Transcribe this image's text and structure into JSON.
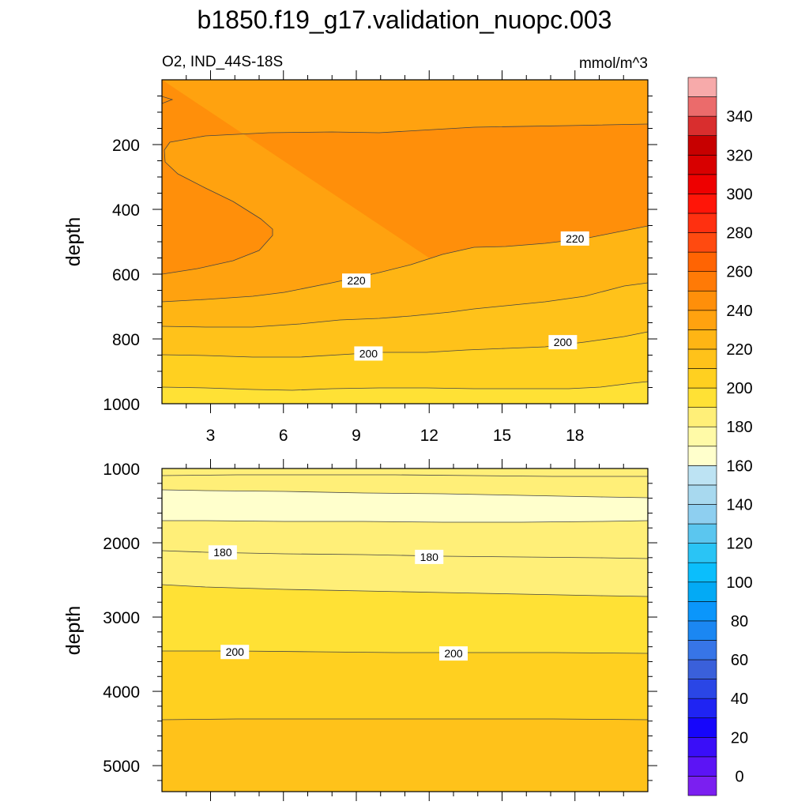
{
  "title": "b1850.f19_g17.validation_nuopc.003",
  "chart_data": {
    "type": "contour",
    "variable": "O2",
    "region": "IND_44S-18S",
    "subtitle_left": "O2, IND_44S-18S",
    "units": "mmol/m^3",
    "x_range": [
      1,
      21
    ],
    "x_ticks": [
      3,
      6,
      9,
      12,
      15,
      18
    ],
    "x_tick_labels": [
      "3",
      "6",
      "9",
      "12",
      "15",
      "18"
    ],
    "ylabel": "depth",
    "upper_panel": {
      "y_range": [
        0,
        1000
      ],
      "y_ticks": [
        200,
        400,
        600,
        800,
        1000
      ],
      "y_tick_labels": [
        "200",
        "400",
        "600",
        "800",
        "1000"
      ],
      "contour_labels": [
        {
          "text": "220",
          "x": 9.0,
          "y": 620
        },
        {
          "text": "220",
          "x": 18.0,
          "y": 490
        },
        {
          "text": "200",
          "x": 9.5,
          "y": 845
        },
        {
          "text": "200",
          "x": 17.5,
          "y": 810
        }
      ]
    },
    "lower_panel": {
      "y_range": [
        1000,
        5350
      ],
      "y_ticks": [
        1000,
        2000,
        3000,
        4000,
        5000
      ],
      "y_tick_labels": [
        "1000",
        "2000",
        "3000",
        "4000",
        "5000"
      ],
      "contour_labels": [
        {
          "text": "180",
          "x": 3.5,
          "y": 2130
        },
        {
          "text": "180",
          "x": 12.0,
          "y": 2190
        },
        {
          "text": "200",
          "x": 4.0,
          "y": 3470
        },
        {
          "text": "200",
          "x": 13.0,
          "y": 3490
        }
      ]
    },
    "colorbar": {
      "levels": [
        -10,
        0,
        10,
        20,
        30,
        40,
        50,
        60,
        70,
        80,
        90,
        100,
        110,
        120,
        130,
        140,
        150,
        160,
        170,
        180,
        190,
        200,
        210,
        220,
        230,
        240,
        250,
        260,
        270,
        280,
        290,
        300,
        310,
        320,
        330,
        340,
        350,
        360
      ],
      "colors": [
        "#7b1ff0",
        "#5c14f5",
        "#3a0ef8",
        "#1606fb",
        "#1f24f3",
        "#2a46e6",
        "#3a60da",
        "#3775e7",
        "#1b87f2",
        "#0b96fb",
        "#03aaf5",
        "#0bbefc",
        "#2ac4f5",
        "#5bc6ef",
        "#8ecff0",
        "#a8d9ef",
        "#bde3f3",
        "#ffffcc",
        "#fffaa7",
        "#ffef78",
        "#ffe135",
        "#ffd020",
        "#ffc21a",
        "#ffb514",
        "#ffa20f",
        "#ff8f0a",
        "#ff7a06",
        "#ff6403",
        "#ff4a10",
        "#ff3010",
        "#ff1508",
        "#ee0000",
        "#d80000",
        "#c70000",
        "#d92e2e",
        "#eb6b6b",
        "#f7aaaa"
      ],
      "tick_values": [
        0,
        20,
        40,
        60,
        80,
        100,
        120,
        140,
        160,
        180,
        200,
        220,
        240,
        260,
        280,
        300,
        320,
        340
      ],
      "tick_labels": [
        "0",
        "20",
        "40",
        "60",
        "80",
        "100",
        "120",
        "140",
        "160",
        "180",
        "200",
        "220",
        "240",
        "260",
        "280",
        "300",
        "320",
        "340"
      ]
    }
  }
}
